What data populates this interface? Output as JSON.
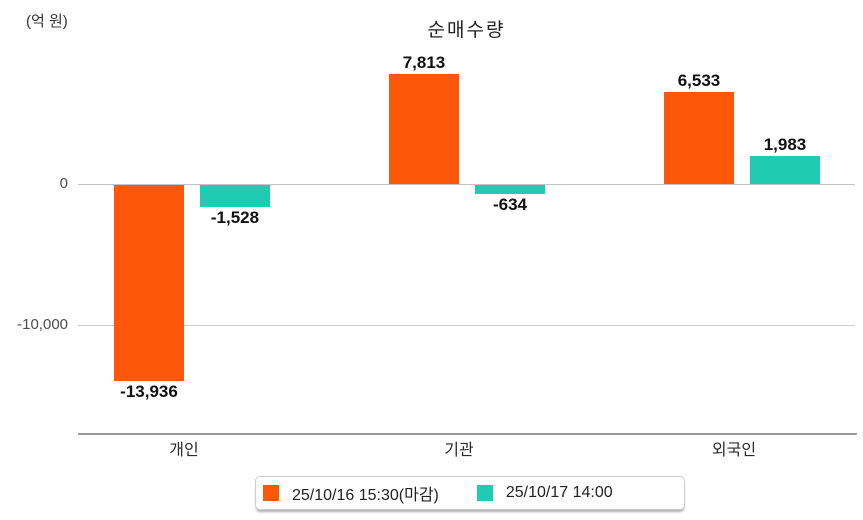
{
  "unit_label": "(억 원)",
  "title": "순매수량",
  "colors": {
    "series1": "#ff570a",
    "series2": "#20cbb3",
    "gridline": "#cccccc",
    "axis_line": "#9a9a9a",
    "tick_text": "#4d4d4d",
    "label_text": "#111111"
  },
  "legend": {
    "position": "bottom",
    "items": [
      {
        "label": "25/10/16 15:30(마감)",
        "color": "#ff570a"
      },
      {
        "label": "25/10/17 14:00",
        "color": "#20cbb3"
      }
    ]
  },
  "chart_data": {
    "type": "bar",
    "title": "순매수량",
    "unit": "(억 원)",
    "categories": [
      "개인",
      "기관",
      "외국인"
    ],
    "series": [
      {
        "name": "25/10/16 15:30(마감)",
        "color": "#ff570a",
        "values": [
          -13936,
          7813,
          6533
        ],
        "labels": [
          "-13,936",
          "7,813",
          "6,533"
        ]
      },
      {
        "name": "25/10/17 14:00",
        "color": "#20cbb3",
        "values": [
          -1528,
          -634,
          1983
        ],
        "labels": [
          "-1,528",
          "-634",
          "1,983"
        ]
      }
    ],
    "y_ticks": [
      0,
      -10000
    ],
    "y_tick_labels": [
      "0",
      "-10,000"
    ],
    "ylim": [
      -15700,
      9300
    ],
    "grid": "horizontal",
    "legend_position": "bottom"
  }
}
